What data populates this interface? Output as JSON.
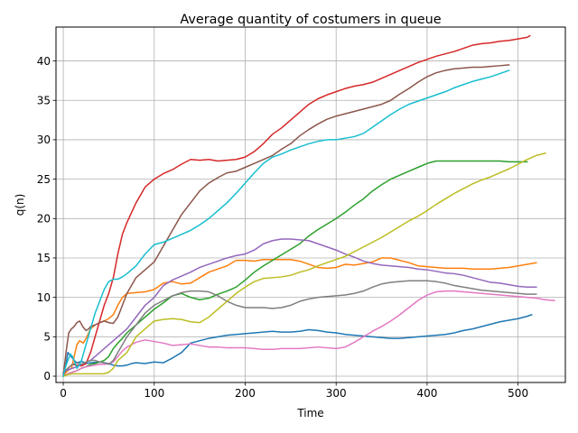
{
  "chart_data": {
    "type": "line",
    "title": "Average quantity of costumers in queue",
    "xlabel": "Time",
    "ylabel": "q(n)",
    "xlim": [
      -8,
      552
    ],
    "ylim": [
      -0.8,
      44.3
    ],
    "xticks": [
      0,
      100,
      200,
      300,
      400,
      500
    ],
    "yticks": [
      0,
      5,
      10,
      15,
      20,
      25,
      30,
      35,
      40
    ],
    "grid": true,
    "series": [
      {
        "color": "#1f77b4",
        "x": [
          0,
          3,
          5,
          8,
          12,
          15,
          20,
          25,
          30,
          40,
          50,
          55,
          60,
          65,
          70,
          75,
          80,
          90,
          100,
          110,
          120,
          130,
          140,
          150,
          160,
          170,
          180,
          190,
          200,
          210,
          220,
          230,
          240,
          250,
          260,
          270,
          280,
          290,
          300,
          310,
          320,
          330,
          340,
          350,
          360,
          370,
          380,
          390,
          400,
          410,
          420,
          430,
          440,
          450,
          460,
          470,
          480,
          490,
          500,
          510,
          515
        ],
        "y": [
          0.3,
          1.5,
          3.0,
          2.6,
          2.0,
          1.7,
          1.9,
          1.6,
          1.7,
          1.8,
          1.6,
          1.4,
          1.3,
          1.3,
          1.4,
          1.6,
          1.7,
          1.6,
          1.8,
          1.7,
          2.3,
          3.0,
          4.2,
          4.5,
          4.8,
          5.0,
          5.2,
          5.3,
          5.4,
          5.5,
          5.6,
          5.7,
          5.6,
          5.6,
          5.7,
          5.9,
          5.8,
          5.6,
          5.5,
          5.3,
          5.2,
          5.1,
          5.0,
          4.9,
          4.8,
          4.8,
          4.9,
          5.0,
          5.1,
          5.2,
          5.3,
          5.5,
          5.8,
          6.0,
          6.3,
          6.6,
          6.9,
          7.1,
          7.3,
          7.6,
          7.8
        ]
      },
      {
        "color": "#ff7f0e",
        "x": [
          0,
          3,
          6,
          9,
          12,
          15,
          18,
          22,
          26,
          30,
          35,
          40,
          45,
          50,
          55,
          60,
          65,
          70,
          80,
          90,
          100,
          110,
          120,
          130,
          140,
          150,
          160,
          170,
          180,
          190,
          200,
          210,
          220,
          230,
          240,
          250,
          260,
          270,
          280,
          290,
          300,
          310,
          320,
          330,
          340,
          350,
          360,
          370,
          380,
          390,
          400,
          410,
          420,
          430,
          440,
          450,
          460,
          470,
          480,
          490,
          500,
          510,
          520
        ],
        "y": [
          0,
          0.5,
          0.8,
          1.0,
          2.5,
          4.0,
          4.5,
          4.2,
          5.0,
          6.0,
          6.5,
          6.8,
          7.0,
          7.3,
          7.8,
          9.0,
          10.0,
          10.5,
          10.6,
          10.7,
          11.0,
          11.8,
          12.0,
          11.7,
          11.8,
          12.5,
          13.2,
          13.6,
          14.0,
          14.7,
          14.7,
          14.6,
          14.8,
          14.8,
          14.8,
          14.8,
          14.6,
          14.2,
          13.8,
          13.7,
          13.8,
          14.2,
          14.1,
          14.3,
          14.5,
          15.0,
          15.0,
          14.7,
          14.4,
          14.0,
          13.9,
          13.8,
          13.7,
          13.7,
          13.7,
          13.6,
          13.6,
          13.6,
          13.7,
          13.8,
          14.0,
          14.2,
          14.4
        ]
      },
      {
        "color": "#2ca02c",
        "x": [
          0,
          5,
          10,
          15,
          20,
          25,
          30,
          35,
          40,
          45,
          50,
          55,
          60,
          65,
          70,
          80,
          90,
          100,
          110,
          120,
          130,
          140,
          150,
          160,
          170,
          180,
          190,
          200,
          210,
          220,
          230,
          240,
          250,
          260,
          270,
          280,
          290,
          300,
          310,
          320,
          330,
          340,
          350,
          360,
          370,
          380,
          390,
          400,
          410,
          420,
          430,
          440,
          450,
          460,
          470,
          480,
          490,
          500,
          510
        ],
        "y": [
          0,
          0.3,
          0.5,
          0.7,
          1.0,
          1.2,
          1.5,
          1.6,
          1.8,
          2.0,
          2.5,
          3.5,
          4.2,
          4.8,
          5.5,
          6.5,
          7.5,
          8.5,
          9.3,
          10.2,
          10.5,
          10.0,
          9.7,
          9.9,
          10.4,
          10.8,
          11.3,
          12.2,
          13.2,
          14.0,
          14.7,
          15.4,
          16.1,
          16.8,
          17.8,
          18.6,
          19.3,
          20.0,
          20.8,
          21.7,
          22.5,
          23.5,
          24.3,
          25.0,
          25.5,
          26.0,
          26.5,
          27.0,
          27.3,
          27.3,
          27.3,
          27.3,
          27.3,
          27.3,
          27.3,
          27.3,
          27.2,
          27.2,
          27.2
        ]
      },
      {
        "color": "#d62728",
        "x": [
          0,
          5,
          10,
          15,
          20,
          25,
          30,
          35,
          40,
          45,
          50,
          55,
          60,
          65,
          70,
          80,
          90,
          100,
          110,
          120,
          130,
          140,
          150,
          160,
          170,
          180,
          190,
          200,
          210,
          220,
          230,
          240,
          250,
          260,
          270,
          280,
          290,
          300,
          310,
          320,
          330,
          340,
          350,
          360,
          370,
          380,
          390,
          400,
          410,
          420,
          430,
          440,
          450,
          460,
          470,
          480,
          490,
          500,
          510,
          513
        ],
        "y": [
          0.3,
          1.0,
          1.5,
          1.4,
          1.3,
          1.6,
          3.0,
          5.0,
          7.0,
          9.0,
          10.5,
          12.5,
          15.5,
          18.0,
          19.5,
          22.0,
          24.0,
          25.0,
          25.7,
          26.2,
          26.9,
          27.5,
          27.4,
          27.5,
          27.3,
          27.4,
          27.5,
          27.8,
          28.5,
          29.5,
          30.7,
          31.5,
          32.5,
          33.5,
          34.5,
          35.2,
          35.7,
          36.1,
          36.5,
          36.8,
          37.0,
          37.3,
          37.8,
          38.3,
          38.8,
          39.3,
          39.8,
          40.2,
          40.6,
          40.9,
          41.2,
          41.6,
          42.0,
          42.2,
          42.3,
          42.5,
          42.6,
          42.8,
          43.0,
          43.2
        ]
      },
      {
        "color": "#9467bd",
        "x": [
          0,
          5,
          10,
          15,
          20,
          25,
          30,
          35,
          40,
          45,
          50,
          55,
          60,
          65,
          70,
          80,
          90,
          100,
          110,
          120,
          130,
          140,
          150,
          160,
          170,
          180,
          190,
          200,
          210,
          220,
          230,
          240,
          250,
          260,
          270,
          280,
          290,
          300,
          310,
          320,
          330,
          340,
          350,
          360,
          370,
          380,
          390,
          400,
          410,
          420,
          430,
          440,
          450,
          460,
          470,
          480,
          490,
          500,
          510,
          520
        ],
        "y": [
          0.5,
          0.8,
          1.0,
          1.2,
          1.5,
          1.8,
          2.0,
          2.5,
          3.0,
          3.5,
          4.0,
          4.5,
          5.0,
          5.5,
          6.0,
          7.5,
          9.0,
          10.0,
          11.5,
          12.2,
          12.7,
          13.2,
          13.8,
          14.2,
          14.6,
          15.0,
          15.3,
          15.5,
          16.0,
          16.8,
          17.2,
          17.4,
          17.4,
          17.3,
          17.2,
          16.8,
          16.4,
          16.0,
          15.5,
          15.1,
          14.6,
          14.3,
          14.1,
          14.0,
          13.9,
          13.8,
          13.6,
          13.5,
          13.3,
          13.1,
          13.0,
          12.8,
          12.5,
          12.2,
          11.9,
          11.8,
          11.6,
          11.4,
          11.3,
          11.3
        ]
      },
      {
        "color": "#8c564b",
        "x": [
          0,
          3,
          6,
          9,
          12,
          15,
          18,
          22,
          25,
          28,
          30,
          35,
          40,
          45,
          50,
          55,
          60,
          65,
          70,
          80,
          90,
          100,
          110,
          120,
          130,
          140,
          150,
          160,
          170,
          180,
          190,
          200,
          210,
          220,
          230,
          240,
          250,
          260,
          270,
          280,
          290,
          300,
          310,
          320,
          330,
          340,
          350,
          360,
          370,
          380,
          390,
          400,
          410,
          420,
          430,
          440,
          450,
          460,
          470,
          480,
          490
        ],
        "y": [
          0,
          3.0,
          5.5,
          6.0,
          6.3,
          6.8,
          7.0,
          6.2,
          5.8,
          6.0,
          6.3,
          6.5,
          6.8,
          7.0,
          6.8,
          6.7,
          7.5,
          9.0,
          10.5,
          12.5,
          13.5,
          14.5,
          16.5,
          18.5,
          20.5,
          22.0,
          23.5,
          24.5,
          25.2,
          25.8,
          26.0,
          26.5,
          27.0,
          27.5,
          28.0,
          28.8,
          29.5,
          30.5,
          31.3,
          32.0,
          32.6,
          33.0,
          33.3,
          33.6,
          33.9,
          34.2,
          34.5,
          35.0,
          35.8,
          36.5,
          37.3,
          38.0,
          38.5,
          38.8,
          39.0,
          39.1,
          39.2,
          39.2,
          39.3,
          39.4,
          39.5
        ]
      },
      {
        "color": "#e377c2",
        "x": [
          0,
          5,
          10,
          15,
          20,
          25,
          30,
          35,
          40,
          45,
          50,
          55,
          60,
          65,
          70,
          80,
          90,
          100,
          110,
          120,
          130,
          140,
          150,
          160,
          170,
          180,
          190,
          200,
          210,
          220,
          230,
          240,
          250,
          260,
          270,
          280,
          290,
          300,
          310,
          320,
          330,
          340,
          350,
          360,
          370,
          380,
          390,
          400,
          410,
          420,
          430,
          440,
          450,
          460,
          470,
          480,
          490,
          500,
          510,
          520,
          530,
          540
        ],
        "y": [
          0,
          0.3,
          0.5,
          0.7,
          1.0,
          1.2,
          1.3,
          1.4,
          1.5,
          1.5,
          1.6,
          1.8,
          2.5,
          3.2,
          3.7,
          4.3,
          4.6,
          4.4,
          4.2,
          3.9,
          4.0,
          4.1,
          3.9,
          3.7,
          3.7,
          3.6,
          3.6,
          3.6,
          3.5,
          3.4,
          3.4,
          3.5,
          3.5,
          3.5,
          3.6,
          3.7,
          3.6,
          3.5,
          3.7,
          4.3,
          5.0,
          5.7,
          6.3,
          7.0,
          7.8,
          8.7,
          9.6,
          10.3,
          10.7,
          10.8,
          10.8,
          10.7,
          10.6,
          10.5,
          10.4,
          10.3,
          10.2,
          10.1,
          10.0,
          9.9,
          9.7,
          9.6
        ]
      },
      {
        "color": "#7f7f7f",
        "x": [
          0,
          5,
          10,
          15,
          20,
          25,
          30,
          35,
          40,
          45,
          50,
          55,
          60,
          65,
          70,
          80,
          90,
          100,
          110,
          120,
          130,
          140,
          150,
          160,
          170,
          180,
          190,
          200,
          210,
          220,
          230,
          240,
          250,
          260,
          270,
          280,
          290,
          300,
          310,
          320,
          330,
          340,
          350,
          360,
          370,
          380,
          390,
          400,
          410,
          420,
          430,
          440,
          450,
          460,
          470,
          480,
          490,
          500,
          510,
          520
        ],
        "y": [
          0.5,
          1.0,
          1.5,
          1.7,
          1.5,
          1.8,
          2.0,
          2.0,
          1.8,
          1.7,
          1.5,
          2.0,
          3.0,
          4.0,
          5.0,
          6.5,
          8.0,
          9.0,
          9.6,
          10.2,
          10.6,
          10.8,
          10.8,
          10.7,
          10.2,
          9.5,
          9.0,
          8.7,
          8.7,
          8.7,
          8.6,
          8.7,
          9.0,
          9.5,
          9.8,
          10.0,
          10.1,
          10.2,
          10.3,
          10.5,
          10.8,
          11.3,
          11.7,
          11.9,
          12.0,
          12.1,
          12.1,
          12.1,
          12.0,
          11.8,
          11.5,
          11.3,
          11.1,
          10.9,
          10.8,
          10.7,
          10.6,
          10.5,
          10.4,
          10.4
        ]
      },
      {
        "color": "#bcbd22",
        "x": [
          0,
          5,
          10,
          15,
          20,
          25,
          30,
          35,
          40,
          45,
          50,
          55,
          60,
          65,
          70,
          80,
          90,
          100,
          110,
          120,
          130,
          140,
          150,
          160,
          170,
          180,
          190,
          200,
          210,
          220,
          230,
          240,
          250,
          260,
          270,
          280,
          290,
          300,
          310,
          320,
          330,
          340,
          350,
          360,
          370,
          380,
          390,
          400,
          410,
          420,
          430,
          440,
          450,
          460,
          470,
          480,
          490,
          500,
          510,
          520,
          530
        ],
        "y": [
          0,
          0.2,
          0.3,
          0.3,
          0.3,
          0.3,
          0.3,
          0.3,
          0.3,
          0.3,
          0.5,
          1.0,
          2.0,
          2.5,
          3.0,
          5.0,
          6.0,
          7.0,
          7.2,
          7.3,
          7.2,
          6.9,
          6.8,
          7.5,
          8.5,
          9.5,
          10.5,
          11.3,
          12.0,
          12.4,
          12.5,
          12.6,
          12.8,
          13.2,
          13.5,
          14.0,
          14.4,
          14.8,
          15.2,
          15.8,
          16.4,
          17.0,
          17.6,
          18.3,
          19.0,
          19.7,
          20.3,
          21.0,
          21.8,
          22.5,
          23.2,
          23.8,
          24.4,
          24.9,
          25.3,
          25.8,
          26.3,
          26.9,
          27.5,
          28.0,
          28.3
        ]
      },
      {
        "color": "#17becf",
        "x": [
          0,
          2,
          5,
          8,
          10,
          12,
          15,
          18,
          20,
          25,
          30,
          35,
          40,
          45,
          50,
          55,
          60,
          65,
          70,
          80,
          90,
          100,
          110,
          120,
          130,
          140,
          150,
          160,
          170,
          180,
          190,
          200,
          210,
          220,
          230,
          240,
          250,
          260,
          270,
          280,
          290,
          300,
          310,
          320,
          330,
          340,
          350,
          360,
          370,
          380,
          390,
          400,
          410,
          420,
          430,
          440,
          450,
          460,
          470,
          480,
          490
        ],
        "y": [
          0,
          1.0,
          2.0,
          2.8,
          2.5,
          2.0,
          1.0,
          1.5,
          2.0,
          4.0,
          6.0,
          8.0,
          9.5,
          11.0,
          12.0,
          12.3,
          12.3,
          12.6,
          13.0,
          14.0,
          15.5,
          16.7,
          17.0,
          17.5,
          18.0,
          18.5,
          19.2,
          20.0,
          21.0,
          22.0,
          23.2,
          24.5,
          25.8,
          27.0,
          27.8,
          28.2,
          28.7,
          29.1,
          29.5,
          29.8,
          30.0,
          30.0,
          30.2,
          30.4,
          30.8,
          31.6,
          32.4,
          33.2,
          33.9,
          34.5,
          34.9,
          35.3,
          35.7,
          36.1,
          36.6,
          37.0,
          37.4,
          37.7,
          38.0,
          38.4,
          38.8
        ]
      }
    ]
  }
}
